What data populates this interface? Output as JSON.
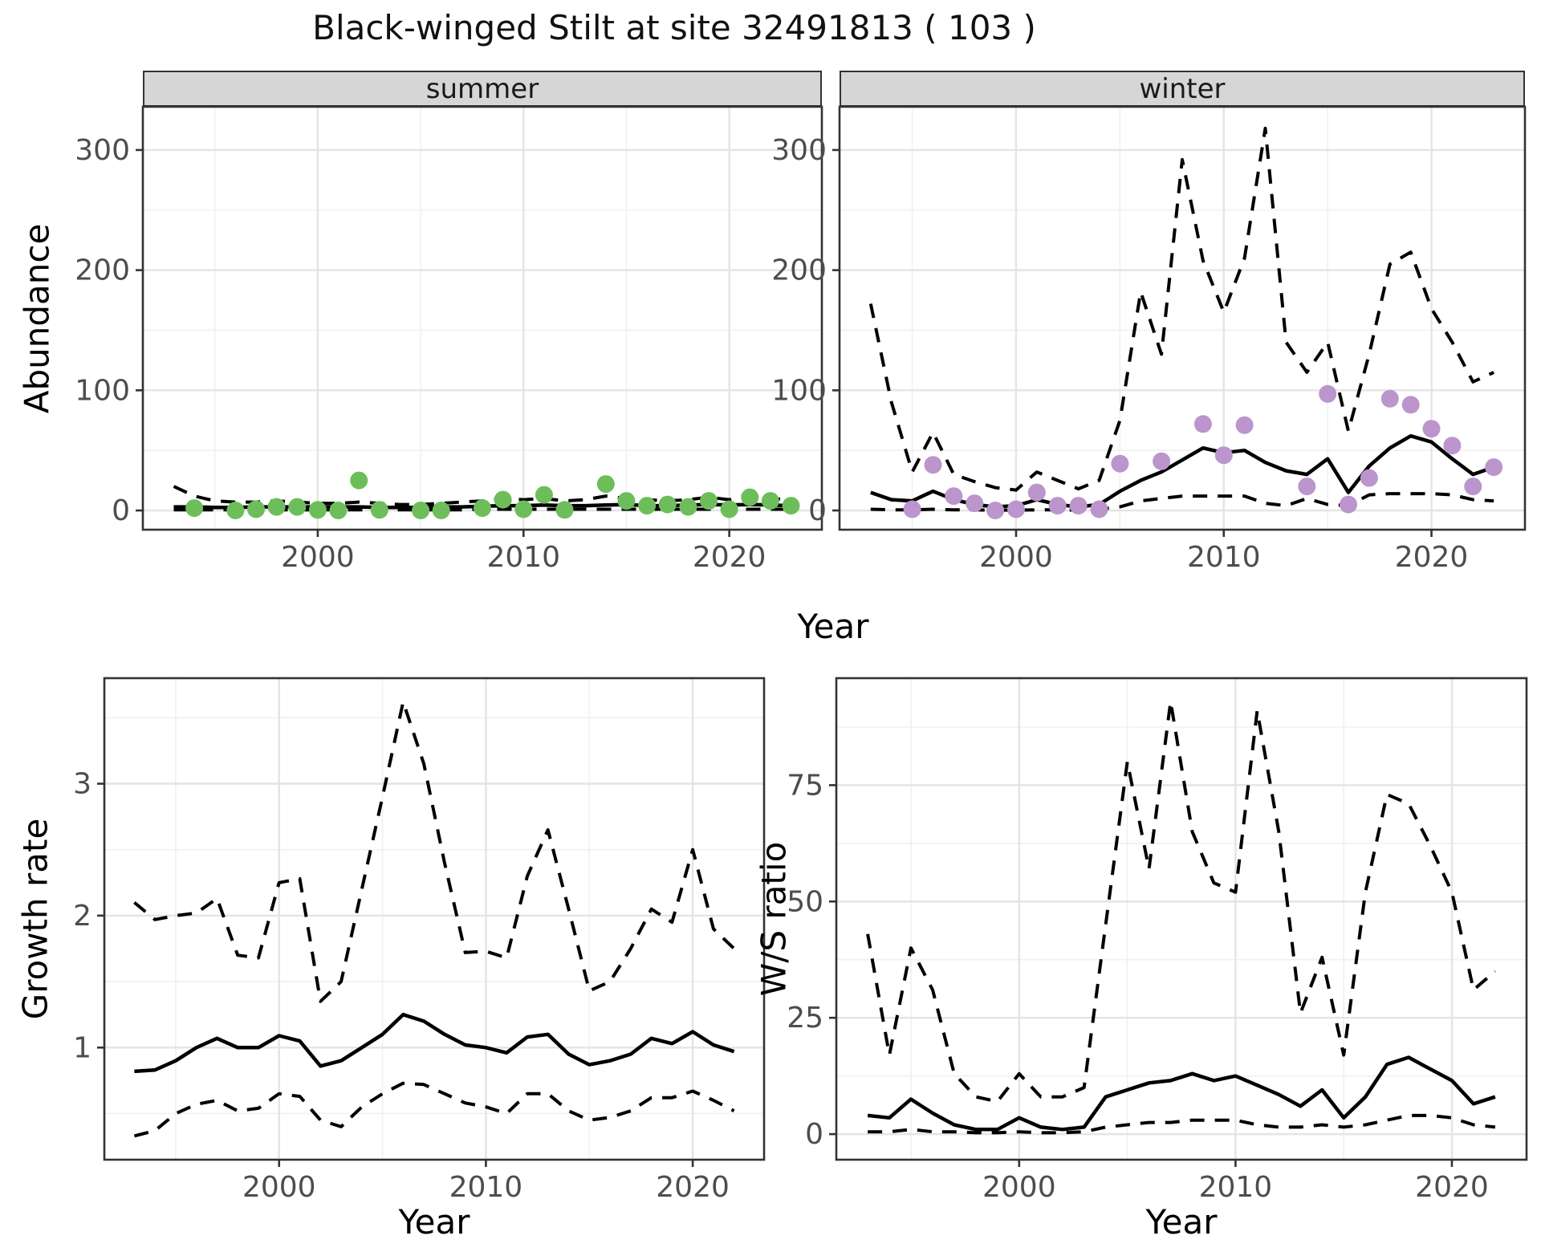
{
  "title": "Black-winged Stilt at site 32491813 ( 103 )",
  "facets": [
    "summer",
    "winter"
  ],
  "colors": {
    "summer_points": "#6DBE5B",
    "winter_points": "#BB95CC",
    "line": "#000000",
    "strip_bg": "#D6D6D6",
    "panel_border": "#333333",
    "grid_major": "#E4E4E4",
    "grid_minor": "#F0F0F0",
    "tick_label": "#4D4D4D"
  },
  "chart_data": [
    {
      "type": "line",
      "facet": "summer",
      "xlabel": "Year",
      "ylabel": "Abundance",
      "x": [
        1993,
        1994,
        1995,
        1996,
        1997,
        1998,
        1999,
        2000,
        2001,
        2002,
        2003,
        2004,
        2005,
        2006,
        2007,
        2008,
        2009,
        2010,
        2011,
        2012,
        2013,
        2014,
        2015,
        2016,
        2017,
        2018,
        2019,
        2020,
        2021,
        2022,
        2023
      ],
      "series": [
        {
          "name": "lower-ci",
          "style": "dashed",
          "values": [
            0.5,
            0.5,
            0.5,
            0.5,
            0.5,
            0.5,
            0.5,
            0.5,
            0.5,
            0.5,
            0.5,
            0.5,
            0.5,
            0.5,
            0.5,
            1,
            1,
            1,
            1,
            1,
            1,
            1,
            1,
            1,
            1,
            1,
            1,
            1,
            1,
            1,
            1
          ]
        },
        {
          "name": "upper-ci",
          "style": "dashed",
          "values": [
            20,
            12,
            8,
            7,
            7,
            8,
            7,
            6,
            6,
            7,
            6,
            5,
            5,
            6,
            7,
            8,
            10,
            9,
            10,
            8,
            9,
            12,
            10,
            9,
            8,
            9,
            11,
            9,
            13,
            10,
            9
          ]
        },
        {
          "name": "median",
          "style": "solid",
          "values": [
            3,
            3,
            2.5,
            2.5,
            3,
            3,
            3,
            3,
            3,
            3,
            2.5,
            2.5,
            2.5,
            3,
            3,
            3.5,
            4,
            4,
            4.5,
            4,
            4,
            4.5,
            5,
            4,
            4,
            4.5,
            5,
            4.5,
            5,
            4.5,
            4
          ]
        }
      ],
      "points": {
        "name": "observed-counts",
        "color": "#6DBE5B",
        "x": [
          1994,
          1996,
          1997,
          1998,
          1999,
          2000,
          2001,
          2002,
          2003,
          2005,
          2006,
          2008,
          2009,
          2010,
          2011,
          2012,
          2014,
          2015,
          2016,
          2017,
          2018,
          2019,
          2020,
          2021,
          2022,
          2023
        ],
        "y": [
          2,
          0,
          1,
          3,
          3,
          0.5,
          0,
          25,
          0.5,
          0,
          0,
          2,
          9,
          1,
          13,
          0.5,
          22,
          8,
          4,
          5,
          3,
          8,
          1,
          11,
          8,
          4
        ]
      },
      "xlim": [
        1991.5,
        2024.5
      ],
      "ylim": [
        -16,
        336
      ],
      "xticks": [
        2000,
        2010,
        2020
      ],
      "xminor": [
        1995,
        2005,
        2015
      ],
      "yticks": [
        0,
        100,
        200,
        300
      ],
      "yminor": [
        50,
        150,
        250
      ],
      "legend": "none",
      "grid": true
    },
    {
      "type": "line",
      "facet": "winter",
      "xlabel": "Year",
      "ylabel": "Abundance",
      "x": [
        1993,
        1994,
        1995,
        1996,
        1997,
        1998,
        1999,
        2000,
        2001,
        2002,
        2003,
        2004,
        2005,
        2006,
        2007,
        2008,
        2009,
        2010,
        2011,
        2012,
        2013,
        2014,
        2015,
        2016,
        2017,
        2018,
        2019,
        2020,
        2021,
        2022,
        2023
      ],
      "series": [
        {
          "name": "lower-ci",
          "style": "dashed",
          "values": [
            1,
            0.5,
            0.5,
            1,
            0.5,
            0.5,
            0.3,
            0.3,
            0.5,
            0.5,
            0.3,
            1,
            3,
            8,
            10,
            12,
            12,
            12,
            12,
            6,
            4,
            10,
            5,
            4,
            13,
            14,
            14,
            14,
            13,
            9,
            8
          ]
        },
        {
          "name": "upper-ci",
          "style": "dashed",
          "values": [
            172,
            90,
            32,
            65,
            30,
            24,
            19,
            17,
            32,
            25,
            18,
            25,
            75,
            182,
            130,
            292,
            208,
            165,
            210,
            318,
            140,
            115,
            140,
            66,
            130,
            205,
            215,
            168,
            140,
            107,
            115
          ]
        },
        {
          "name": "median",
          "style": "solid",
          "values": [
            15,
            9,
            8,
            16,
            9,
            5,
            3,
            4,
            9,
            5,
            3,
            5,
            16,
            25,
            32,
            42,
            52,
            48,
            50,
            40,
            33,
            30,
            43,
            15,
            37,
            52,
            62,
            57,
            43,
            30,
            36
          ]
        }
      ],
      "points": {
        "name": "observed-counts",
        "color": "#BB95CC",
        "x": [
          1995,
          1996,
          1997,
          1998,
          1999,
          2000,
          2001,
          2002,
          2003,
          2004,
          2005,
          2007,
          2009,
          2010,
          2011,
          2014,
          2015,
          2016,
          2017,
          2018,
          2019,
          2020,
          2021,
          2022,
          2023
        ],
        "y": [
          1,
          38,
          12,
          6,
          0,
          1,
          15,
          4,
          4,
          1,
          39,
          41,
          72,
          46,
          71,
          20,
          97,
          5,
          27,
          93,
          88,
          68,
          54,
          20,
          36
        ]
      },
      "xlim": [
        1991.5,
        2024.5
      ],
      "ylim": [
        -16,
        336
      ],
      "xticks": [
        2000,
        2010,
        2020
      ],
      "xminor": [
        1995,
        2005,
        2015
      ],
      "yticks": [
        0,
        100,
        200,
        300
      ],
      "yminor": [
        50,
        150,
        250
      ],
      "legend": "none",
      "grid": true
    },
    {
      "type": "line",
      "facet": null,
      "xlabel": "Year",
      "ylabel": "Growth rate",
      "x": [
        1993,
        1994,
        1995,
        1996,
        1997,
        1998,
        1999,
        2000,
        2001,
        2002,
        2003,
        2004,
        2005,
        2006,
        2007,
        2008,
        2009,
        2010,
        2011,
        2012,
        2013,
        2014,
        2015,
        2016,
        2017,
        2018,
        2019,
        2020,
        2021,
        2022
      ],
      "series": [
        {
          "name": "lower-ci",
          "style": "dashed",
          "values": [
            0.33,
            0.37,
            0.5,
            0.57,
            0.6,
            0.52,
            0.54,
            0.65,
            0.63,
            0.45,
            0.4,
            0.55,
            0.65,
            0.73,
            0.72,
            0.65,
            0.58,
            0.55,
            0.5,
            0.65,
            0.65,
            0.52,
            0.45,
            0.47,
            0.52,
            0.62,
            0.62,
            0.67,
            0.6,
            0.52
          ]
        },
        {
          "name": "upper-ci",
          "style": "dashed",
          "values": [
            2.1,
            1.97,
            2.0,
            2.02,
            2.13,
            1.7,
            1.68,
            2.25,
            2.28,
            1.35,
            1.5,
            2.2,
            2.9,
            3.62,
            3.15,
            2.4,
            1.72,
            1.73,
            1.68,
            2.3,
            2.65,
            2.05,
            1.43,
            1.5,
            1.75,
            2.05,
            1.95,
            2.5,
            1.9,
            1.75
          ]
        },
        {
          "name": "median",
          "style": "solid",
          "values": [
            0.82,
            0.83,
            0.9,
            1.0,
            1.07,
            1.0,
            1.0,
            1.09,
            1.05,
            0.86,
            0.9,
            1.0,
            1.1,
            1.25,
            1.2,
            1.1,
            1.02,
            1.0,
            0.96,
            1.08,
            1.1,
            0.95,
            0.87,
            0.9,
            0.95,
            1.07,
            1.03,
            1.12,
            1.02,
            0.97
          ]
        }
      ],
      "points": null,
      "xlim": [
        1991.55,
        2023.45
      ],
      "ylim": [
        0.15,
        3.8
      ],
      "xticks": [
        2000,
        2010,
        2020
      ],
      "xminor": [
        1995,
        2005,
        2015
      ],
      "yticks": [
        1,
        2,
        3
      ],
      "yminor": [
        0.5,
        1.5,
        2.5,
        3.5
      ],
      "legend": "none",
      "grid": true
    },
    {
      "type": "line",
      "facet": null,
      "xlabel": "Year",
      "ylabel": "W/S ratio",
      "x": [
        1993,
        1994,
        1995,
        1996,
        1997,
        1998,
        1999,
        2000,
        2001,
        2002,
        2003,
        2004,
        2005,
        2006,
        2007,
        2008,
        2009,
        2010,
        2011,
        2012,
        2013,
        2014,
        2015,
        2016,
        2017,
        2018,
        2019,
        2020,
        2021,
        2022
      ],
      "series": [
        {
          "name": "lower-ci",
          "style": "dashed",
          "values": [
            0.5,
            0.5,
            1,
            0.5,
            0.5,
            0.3,
            0.3,
            0.5,
            0.3,
            0.3,
            0.5,
            1.5,
            2,
            2.5,
            2.5,
            3,
            3,
            3,
            2,
            1.5,
            1.5,
            2,
            1.5,
            2,
            3,
            4,
            4,
            3.5,
            2,
            1.5
          ]
        },
        {
          "name": "upper-ci",
          "style": "dashed",
          "values": [
            43,
            17,
            40,
            31,
            13,
            8,
            7,
            13,
            8,
            8,
            10,
            45,
            80,
            57,
            93,
            65,
            54,
            52,
            91,
            65,
            26,
            38,
            17,
            52,
            73,
            71,
            62,
            52,
            31,
            35
          ]
        },
        {
          "name": "median",
          "style": "solid",
          "values": [
            4,
            3.5,
            7.5,
            4.5,
            2,
            1,
            1,
            3.5,
            1.5,
            1,
            1.5,
            8,
            9.5,
            11,
            11.5,
            13,
            11.5,
            12.5,
            10.5,
            8.5,
            6,
            9.5,
            3.5,
            8,
            15,
            16.5,
            14,
            11.5,
            6.5,
            8
          ]
        }
      ],
      "points": null,
      "xlim": [
        1991.55,
        2023.45
      ],
      "ylim": [
        -5.5,
        98
      ],
      "xticks": [
        2000,
        2010,
        2020
      ],
      "xminor": [
        1995,
        2005,
        2015
      ],
      "yticks": [
        0,
        25,
        50,
        75
      ],
      "yminor": [
        12.5,
        37.5,
        62.5,
        87.5
      ],
      "legend": "none",
      "grid": true
    }
  ]
}
